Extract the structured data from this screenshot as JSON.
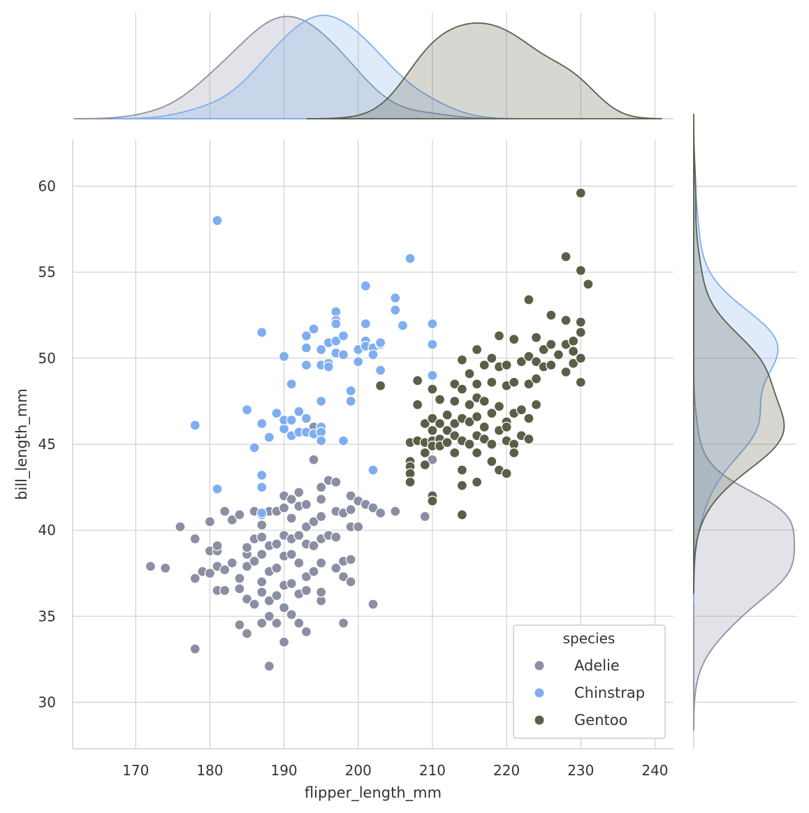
{
  "chart_data": {
    "type": "scatter",
    "title": "",
    "xlabel": "flipper_length_mm",
    "ylabel": "bill_length_mm",
    "xlim": [
      161.5,
      242.5
    ],
    "ylim": [
      27.3,
      62.7
    ],
    "x_ticks": [
      170,
      180,
      190,
      200,
      210,
      220,
      230,
      240
    ],
    "y_ticks": [
      30,
      35,
      40,
      45,
      50,
      55,
      60
    ],
    "grid": true,
    "legend": {
      "title": "species",
      "placement": "bottom-right"
    },
    "marginals": {
      "top": "kde of flipper_length_mm by species",
      "right": "kde of bill_length_mm by species"
    },
    "series": [
      {
        "name": "Adelie",
        "color": "#8a8fa3",
        "points": [
          [
            172,
            37.9
          ],
          [
            174,
            37.8
          ],
          [
            176,
            40.2
          ],
          [
            178,
            33.1
          ],
          [
            178,
            37.2
          ],
          [
            178,
            39.5
          ],
          [
            179,
            37.6
          ],
          [
            180,
            37.5
          ],
          [
            180,
            40.5
          ],
          [
            180,
            38.8
          ],
          [
            181,
            36.5
          ],
          [
            181,
            37.9
          ],
          [
            181,
            38.8
          ],
          [
            181,
            39.1
          ],
          [
            182,
            36.5
          ],
          [
            182,
            37.7
          ],
          [
            182,
            41.1
          ],
          [
            183,
            38.1
          ],
          [
            183,
            40.6
          ],
          [
            184,
            34.5
          ],
          [
            184,
            36.6
          ],
          [
            184,
            37.2
          ],
          [
            184,
            40.9
          ],
          [
            185,
            34.0
          ],
          [
            185,
            36.0
          ],
          [
            185,
            37.9
          ],
          [
            185,
            38.6
          ],
          [
            185,
            39.0
          ],
          [
            186,
            35.7
          ],
          [
            186,
            38.2
          ],
          [
            186,
            39.5
          ],
          [
            186,
            41.1
          ],
          [
            187,
            34.6
          ],
          [
            187,
            36.4
          ],
          [
            187,
            37.0
          ],
          [
            187,
            38.6
          ],
          [
            187,
            39.6
          ],
          [
            187,
            40.3
          ],
          [
            187,
            40.9
          ],
          [
            188,
            32.1
          ],
          [
            188,
            35.0
          ],
          [
            188,
            35.9
          ],
          [
            188,
            37.6
          ],
          [
            188,
            39.1
          ],
          [
            188,
            41.1
          ],
          [
            189,
            34.6
          ],
          [
            189,
            36.2
          ],
          [
            189,
            37.8
          ],
          [
            189,
            39.2
          ],
          [
            189,
            41.1
          ],
          [
            190,
            33.5
          ],
          [
            190,
            35.5
          ],
          [
            190,
            36.8
          ],
          [
            190,
            38.5
          ],
          [
            190,
            39.7
          ],
          [
            190,
            41.3
          ],
          [
            190,
            42.0
          ],
          [
            191,
            35.1
          ],
          [
            191,
            36.9
          ],
          [
            191,
            38.6
          ],
          [
            191,
            39.5
          ],
          [
            191,
            40.7
          ],
          [
            191,
            41.8
          ],
          [
            192,
            34.6
          ],
          [
            192,
            36.3
          ],
          [
            192,
            38.1
          ],
          [
            192,
            39.7
          ],
          [
            192,
            41.4
          ],
          [
            192,
            42.2
          ],
          [
            193,
            34.1
          ],
          [
            193,
            36.5
          ],
          [
            193,
            37.3
          ],
          [
            193,
            39.2
          ],
          [
            193,
            40.2
          ],
          [
            193,
            41.5
          ],
          [
            194,
            37.6
          ],
          [
            194,
            39.1
          ],
          [
            194,
            40.5
          ],
          [
            194,
            44.1
          ],
          [
            195,
            35.9
          ],
          [
            195,
            36.4
          ],
          [
            195,
            38.1
          ],
          [
            195,
            39.5
          ],
          [
            195,
            40.8
          ],
          [
            195,
            41.8
          ],
          [
            195,
            42.5
          ],
          [
            196,
            39.7
          ],
          [
            196,
            42.9
          ],
          [
            197,
            37.8
          ],
          [
            197,
            39.6
          ],
          [
            197,
            41.1
          ],
          [
            197,
            42.8
          ],
          [
            198,
            34.6
          ],
          [
            198,
            37.3
          ],
          [
            198,
            41.0
          ],
          [
            198,
            38.2
          ],
          [
            199,
            37.0
          ],
          [
            199,
            38.3
          ],
          [
            199,
            40.2
          ],
          [
            199,
            41.2
          ],
          [
            199,
            42.0
          ],
          [
            200,
            41.7
          ],
          [
            200,
            40.2
          ],
          [
            201,
            41.5
          ],
          [
            202,
            35.7
          ],
          [
            202,
            41.3
          ],
          [
            203,
            41.0
          ],
          [
            205,
            41.1
          ],
          [
            209,
            40.8
          ],
          [
            210,
            44.1
          ],
          [
            194,
            46.0
          ]
        ]
      },
      {
        "name": "Chinstrap",
        "color": "#7eaef0",
        "points": [
          [
            178,
            46.1
          ],
          [
            181,
            42.4
          ],
          [
            181,
            58.0
          ],
          [
            185,
            47.0
          ],
          [
            186,
            44.8
          ],
          [
            187,
            51.5
          ],
          [
            187,
            46.2
          ],
          [
            187,
            43.2
          ],
          [
            187,
            42.5
          ],
          [
            187,
            41.0
          ],
          [
            188,
            45.4
          ],
          [
            189,
            46.8
          ],
          [
            190,
            50.1
          ],
          [
            190,
            46.4
          ],
          [
            190,
            45.9
          ],
          [
            190,
            46.4
          ],
          [
            191,
            48.5
          ],
          [
            191,
            46.4
          ],
          [
            191,
            45.5
          ],
          [
            192,
            46.9
          ],
          [
            192,
            45.7
          ],
          [
            193,
            51.3
          ],
          [
            193,
            50.6
          ],
          [
            193,
            49.6
          ],
          [
            193,
            46.5
          ],
          [
            193,
            45.7
          ],
          [
            194,
            51.7
          ],
          [
            194,
            45.6
          ],
          [
            195,
            50.5
          ],
          [
            195,
            46.0
          ],
          [
            195,
            45.7
          ],
          [
            195,
            45.2
          ],
          [
            195,
            47.5
          ],
          [
            195,
            49.6
          ],
          [
            196,
            50.9
          ],
          [
            196,
            49.7
          ],
          [
            196,
            49.5
          ],
          [
            197,
            52.7
          ],
          [
            197,
            52.2
          ],
          [
            197,
            51.0
          ],
          [
            197,
            50.3
          ],
          [
            197,
            52.0
          ],
          [
            198,
            51.3
          ],
          [
            198,
            50.2
          ],
          [
            198,
            45.2
          ],
          [
            199,
            48.1
          ],
          [
            199,
            47.5
          ],
          [
            200,
            50.5
          ],
          [
            200,
            49.8
          ],
          [
            201,
            54.2
          ],
          [
            201,
            52.0
          ],
          [
            201,
            51.0
          ],
          [
            201,
            50.7
          ],
          [
            202,
            50.6
          ],
          [
            202,
            50.2
          ],
          [
            202,
            43.5
          ],
          [
            203,
            50.8
          ],
          [
            203,
            50.9
          ],
          [
            203,
            49.3
          ],
          [
            205,
            53.5
          ],
          [
            205,
            52.8
          ],
          [
            206,
            51.9
          ],
          [
            207,
            55.8
          ],
          [
            210,
            52.0
          ],
          [
            210,
            50.8
          ],
          [
            210,
            49.0
          ]
        ]
      },
      {
        "name": "Gentoo",
        "color": "#5b5f47",
        "points": [
          [
            203,
            48.4
          ],
          [
            207,
            45.1
          ],
          [
            207,
            44.0
          ],
          [
            207,
            43.7
          ],
          [
            207,
            43.3
          ],
          [
            207,
            42.8
          ],
          [
            208,
            48.7
          ],
          [
            208,
            47.3
          ],
          [
            208,
            45.2
          ],
          [
            209,
            46.2
          ],
          [
            209,
            45.1
          ],
          [
            209,
            44.5
          ],
          [
            209,
            43.8
          ],
          [
            210,
            48.2
          ],
          [
            210,
            46.5
          ],
          [
            210,
            45.8
          ],
          [
            210,
            45.2
          ],
          [
            210,
            44.9
          ],
          [
            210,
            42.0
          ],
          [
            210,
            41.7
          ],
          [
            211,
            47.6
          ],
          [
            211,
            46.2
          ],
          [
            211,
            45.3
          ],
          [
            211,
            44.9
          ],
          [
            212,
            46.7
          ],
          [
            212,
            45.8
          ],
          [
            212,
            45.1
          ],
          [
            213,
            48.5
          ],
          [
            213,
            47.5
          ],
          [
            213,
            46.2
          ],
          [
            213,
            45.5
          ],
          [
            213,
            44.5
          ],
          [
            214,
            49.9
          ],
          [
            214,
            48.2
          ],
          [
            214,
            46.5
          ],
          [
            214,
            45.2
          ],
          [
            214,
            43.5
          ],
          [
            214,
            42.6
          ],
          [
            214,
            40.9
          ],
          [
            215,
            49.1
          ],
          [
            215,
            47.3
          ],
          [
            215,
            46.3
          ],
          [
            215,
            45.0
          ],
          [
            216,
            50.5
          ],
          [
            216,
            48.5
          ],
          [
            216,
            47.7
          ],
          [
            216,
            46.6
          ],
          [
            216,
            45.5
          ],
          [
            216,
            44.5
          ],
          [
            216,
            42.8
          ],
          [
            217,
            49.6
          ],
          [
            217,
            47.5
          ],
          [
            217,
            46.0
          ],
          [
            217,
            45.3
          ],
          [
            218,
            50.0
          ],
          [
            218,
            48.6
          ],
          [
            218,
            46.8
          ],
          [
            218,
            44.0
          ],
          [
            219,
            51.3
          ],
          [
            219,
            49.5
          ],
          [
            219,
            47.2
          ],
          [
            219,
            45.8
          ],
          [
            219,
            43.5
          ],
          [
            220,
            49.6
          ],
          [
            220,
            48.4
          ],
          [
            220,
            46.3
          ],
          [
            220,
            45.2
          ],
          [
            220,
            43.3
          ],
          [
            221,
            51.1
          ],
          [
            221,
            48.6
          ],
          [
            221,
            46.8
          ],
          [
            221,
            45.0
          ],
          [
            221,
            44.5
          ],
          [
            222,
            49.8
          ],
          [
            222,
            47.0
          ],
          [
            222,
            45.5
          ],
          [
            223,
            53.4
          ],
          [
            223,
            50.1
          ],
          [
            223,
            48.5
          ],
          [
            223,
            46.5
          ],
          [
            223,
            45.3
          ],
          [
            224,
            51.2
          ],
          [
            224,
            49.8
          ],
          [
            224,
            48.8
          ],
          [
            224,
            47.3
          ],
          [
            225,
            50.5
          ],
          [
            225,
            49.5
          ],
          [
            226,
            50.8
          ],
          [
            226,
            49.6
          ],
          [
            226,
            52.5
          ],
          [
            227,
            50.2
          ],
          [
            228,
            55.9
          ],
          [
            228,
            52.2
          ],
          [
            228,
            50.8
          ],
          [
            228,
            49.2
          ],
          [
            229,
            50.4
          ],
          [
            229,
            49.7
          ],
          [
            230,
            59.6
          ],
          [
            230,
            55.1
          ],
          [
            230,
            52.1
          ],
          [
            230,
            51.5
          ],
          [
            230,
            50.0
          ],
          [
            230,
            48.6
          ],
          [
            231,
            54.3
          ],
          [
            229,
            51.0
          ],
          [
            220,
            46.0
          ],
          [
            218,
            45.0
          ]
        ]
      }
    ]
  }
}
